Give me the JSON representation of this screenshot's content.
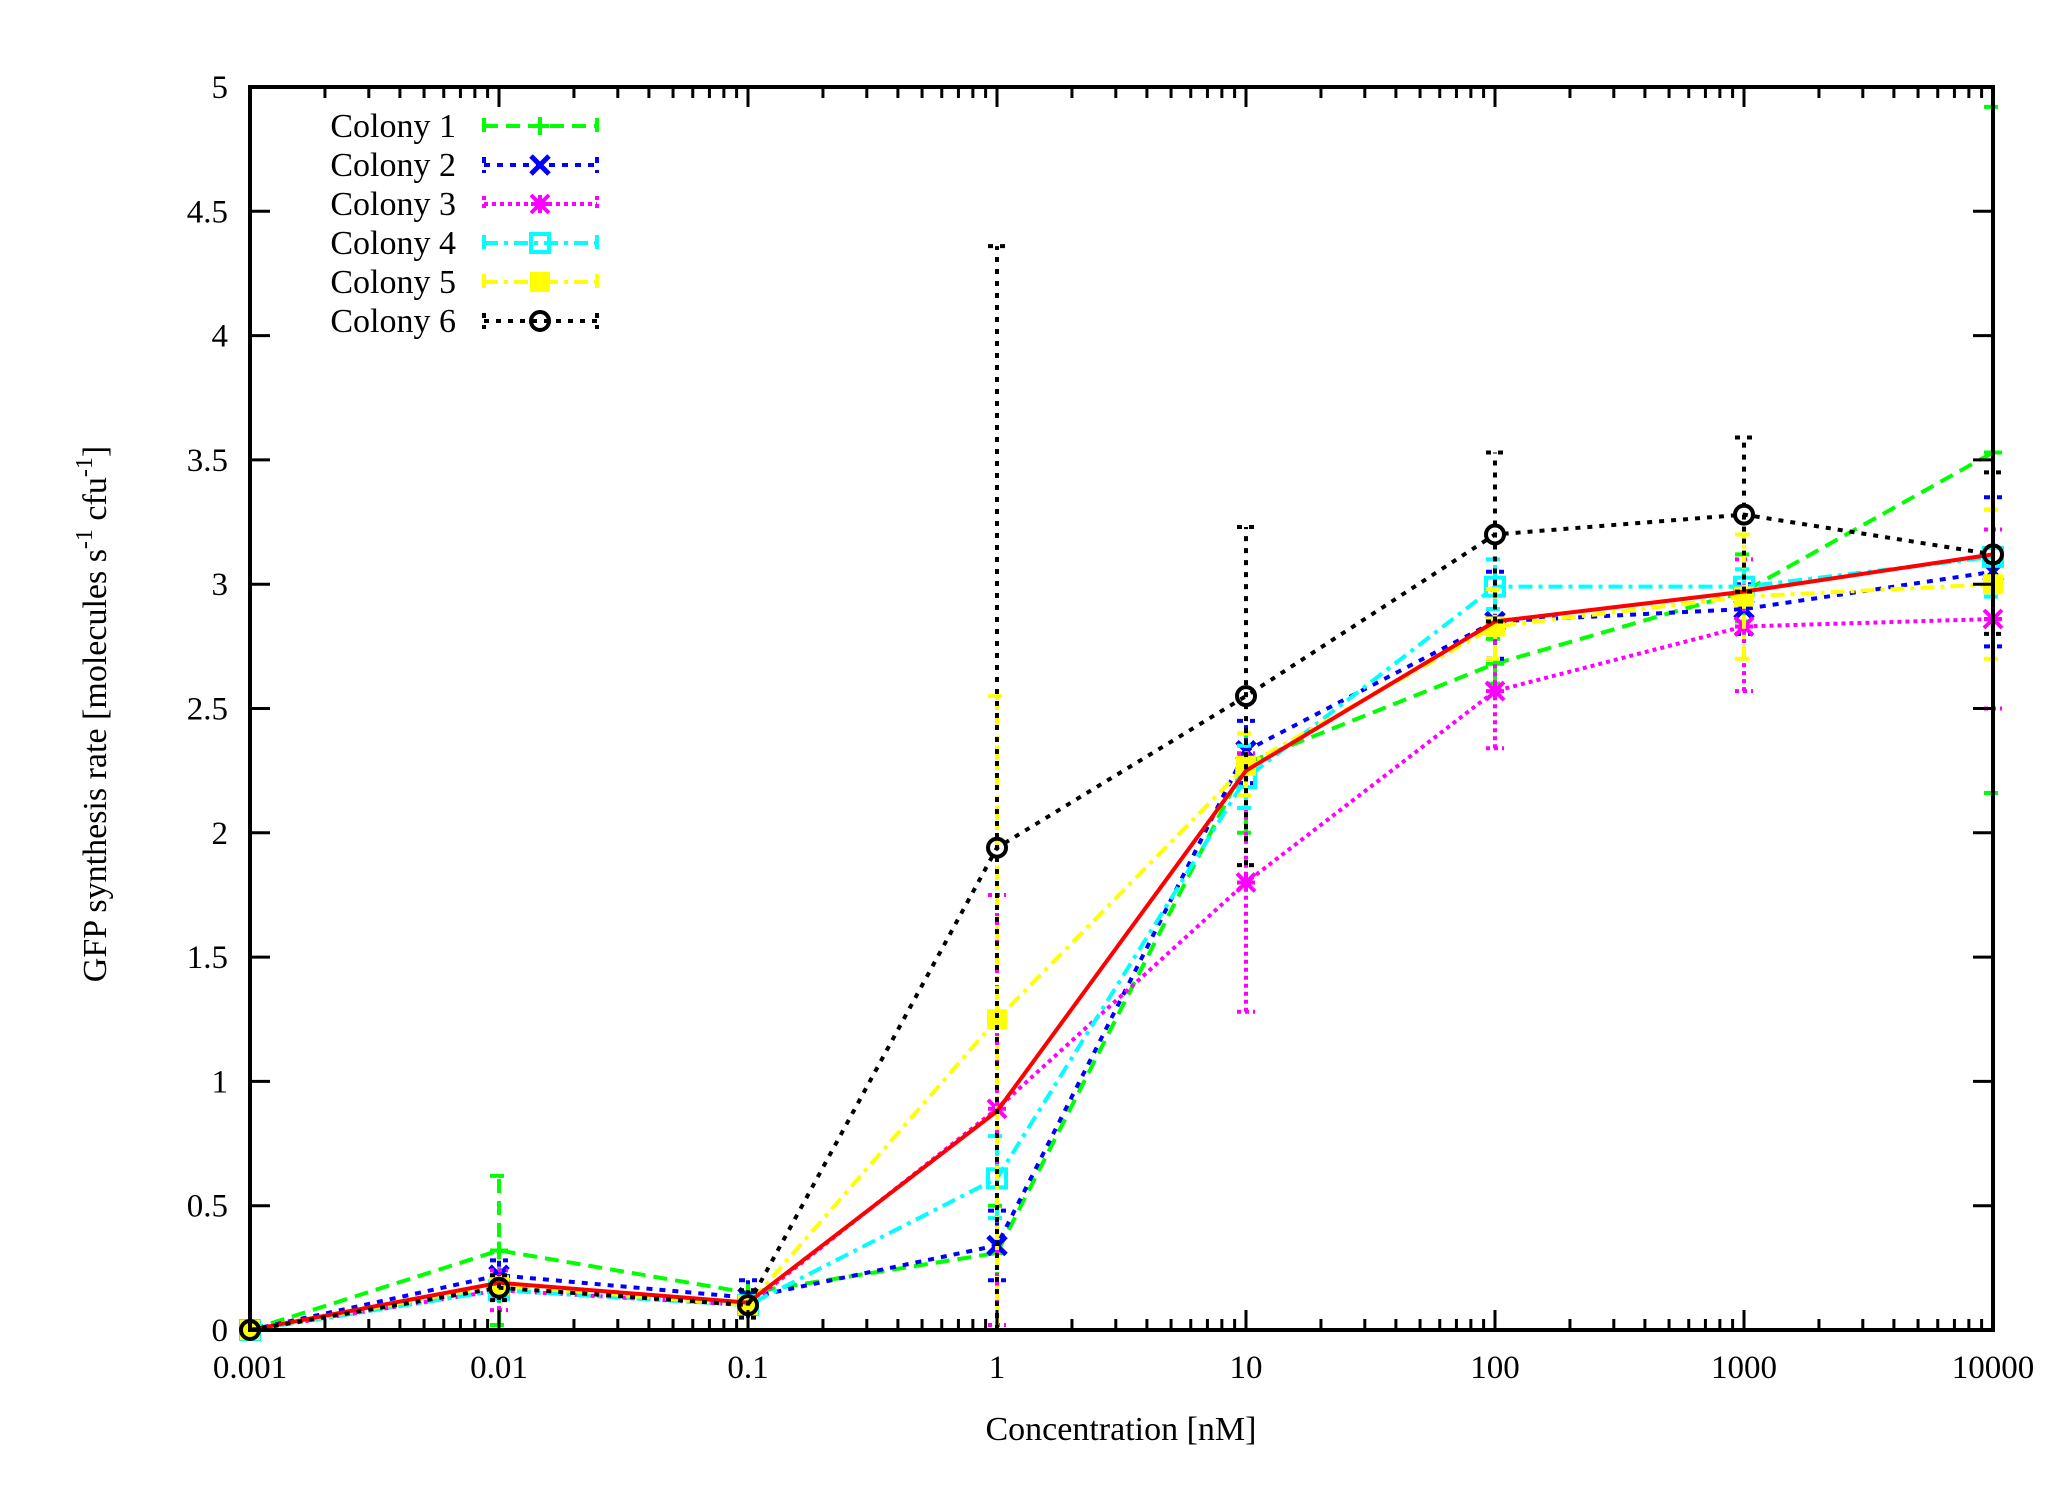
{
  "chart_data": {
    "type": "line",
    "title": "",
    "xlabel": "Concentration [nM]",
    "ylabel": {
      "main": "GFP synthesis rate [molecules s",
      "sup1": "-1",
      "mid": " cfu",
      "sup2": "-1",
      "end": "]"
    },
    "xscale": "log",
    "xlim": [
      0.001,
      10000
    ],
    "ylim": [
      0,
      5
    ],
    "x": [
      0.001,
      0.01,
      0.1,
      1,
      10,
      100,
      1000,
      10000
    ],
    "xtick_labels": [
      "0.001",
      "0.01",
      "0.1",
      "1",
      "10",
      "100",
      "1000",
      "10000"
    ],
    "yticks": [
      0,
      0.5,
      1,
      1.5,
      2,
      2.5,
      3,
      3.5,
      4,
      4.5,
      5
    ],
    "ytick_labels": [
      "0",
      "0.5",
      "1",
      "1.5",
      "2",
      "2.5",
      "3",
      "3.5",
      "4",
      "4.5",
      "5"
    ],
    "legend_position": "top-left",
    "grid": false,
    "series": [
      {
        "name": "Colony 1",
        "color": "#00ff00",
        "dash": "14,8",
        "marker": "plus",
        "values": [
          0,
          0.32,
          0.15,
          0.31,
          2.28,
          2.68,
          2.97,
          3.53
        ],
        "errors": [
          null,
          [
            0.02,
            0.62
          ],
          null,
          [
            0.0,
            0.5
          ],
          [
            2.0,
            2.4
          ],
          [
            2.6,
            2.78
          ],
          [
            2.85,
            3.12
          ],
          [
            2.16,
            4.92
          ]
        ]
      },
      {
        "name": "Colony 2",
        "color": "#0000ff",
        "dash": "6,7",
        "marker": "cross",
        "values": [
          0,
          0.22,
          0.13,
          0.34,
          2.33,
          2.85,
          2.9,
          3.05
        ],
        "errors": [
          null,
          [
            0.15,
            0.28
          ],
          [
            0.08,
            0.2
          ],
          [
            0.2,
            0.48
          ],
          [
            2.2,
            2.45
          ],
          [
            2.7,
            3.05
          ],
          [
            2.8,
            3.0
          ],
          [
            2.75,
            3.35
          ]
        ]
      },
      {
        "name": "Colony 3",
        "color": "#ff00ff",
        "dash": "4,4",
        "marker": "star",
        "values": [
          0,
          0.16,
          0.1,
          0.89,
          1.8,
          2.57,
          2.83,
          2.86
        ],
        "errors": [
          null,
          [
            0.08,
            0.24
          ],
          null,
          [
            0.02,
            1.75
          ],
          [
            1.28,
            2.32
          ],
          [
            2.34,
            2.8
          ],
          [
            2.57,
            3.1
          ],
          [
            2.5,
            3.22
          ]
        ]
      },
      {
        "name": "Colony 4",
        "color": "#00ffff",
        "dash": "14,6,4,6",
        "marker": "square-open",
        "values": [
          0,
          0.16,
          0.1,
          0.61,
          2.22,
          2.99,
          2.99,
          3.11
        ],
        "errors": [
          null,
          null,
          null,
          [
            0.45,
            0.78
          ],
          [
            2.1,
            2.35
          ],
          [
            2.9,
            3.1
          ],
          [
            2.92,
            3.06
          ],
          [
            2.95,
            3.3
          ]
        ]
      },
      {
        "name": "Colony 5",
        "color": "#ffff00",
        "dash": "14,6,4,6",
        "marker": "square-filled",
        "values": [
          0,
          0.18,
          0.1,
          1.25,
          2.27,
          2.83,
          2.95,
          3.0
        ],
        "errors": [
          null,
          null,
          null,
          [
            0.0,
            2.55
          ],
          [
            2.15,
            2.4
          ],
          [
            2.7,
            2.98
          ],
          [
            2.7,
            3.2
          ],
          [
            2.7,
            3.3
          ]
        ]
      },
      {
        "name": "Colony 6",
        "color": "#000000",
        "dash": "5,7",
        "marker": "circle-open",
        "values": [
          0,
          0.17,
          0.1,
          1.94,
          2.55,
          3.2,
          3.28,
          3.12
        ],
        "errors": [
          null,
          [
            0.12,
            0.22
          ],
          [
            0.05,
            0.16
          ],
          [
            0.0,
            4.36
          ],
          [
            1.87,
            3.23
          ],
          [
            2.85,
            3.53
          ],
          [
            2.97,
            3.59
          ],
          [
            2.8,
            3.45
          ]
        ]
      },
      {
        "name": "",
        "color": "#ff0000",
        "dash": "",
        "marker": "none",
        "values": [
          0,
          0.19,
          0.11,
          0.88,
          2.25,
          2.85,
          2.97,
          3.12
        ],
        "errors": []
      }
    ]
  }
}
